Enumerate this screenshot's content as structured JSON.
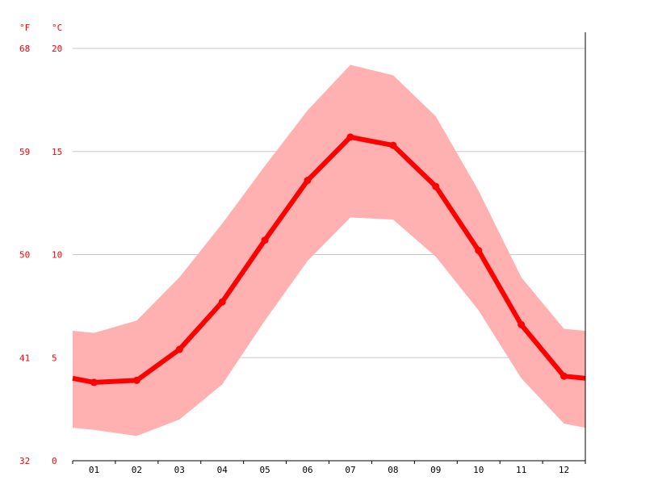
{
  "chart_data": {
    "type": "line",
    "title": "",
    "xlabel": "",
    "ylabel": "",
    "units": {
      "fahrenheit": "°F",
      "celsius": "°C"
    },
    "categories": [
      "01",
      "02",
      "03",
      "04",
      "05",
      "06",
      "07",
      "08",
      "09",
      "10",
      "11",
      "12"
    ],
    "y_ticks_celsius": [
      "0",
      "5",
      "10",
      "15",
      "20"
    ],
    "y_ticks_fahrenheit": [
      "32",
      "41",
      "50",
      "59",
      "68"
    ],
    "ylim": [
      0,
      20
    ],
    "grid": true,
    "series": [
      {
        "values": [
          3.8,
          3.9,
          5.4,
          7.7,
          10.7,
          13.6,
          15.7,
          15.3,
          13.3,
          10.2,
          6.6,
          4.1
        ],
        "start_value": 4.0,
        "end_value": 4.0,
        "color": "#ff0000"
      }
    ],
    "band": {
      "upper": [
        6.2,
        6.8,
        8.9,
        11.5,
        14.3,
        17.0,
        19.2,
        18.7,
        16.7,
        13.1,
        8.9,
        6.4
      ],
      "upper_start": 6.3,
      "upper_end": 6.3,
      "lower": [
        1.5,
        1.2,
        2.0,
        3.7,
        6.8,
        9.7,
        11.8,
        11.7,
        9.9,
        7.3,
        4.0,
        1.8
      ],
      "lower_start": 1.6,
      "lower_end": 1.6,
      "color": "#ffb0b0"
    }
  },
  "colors": {
    "axis_text": "#ff0000",
    "category_text": "#000000",
    "grid": "#c8c8c8",
    "axis_line": "#000000"
  }
}
